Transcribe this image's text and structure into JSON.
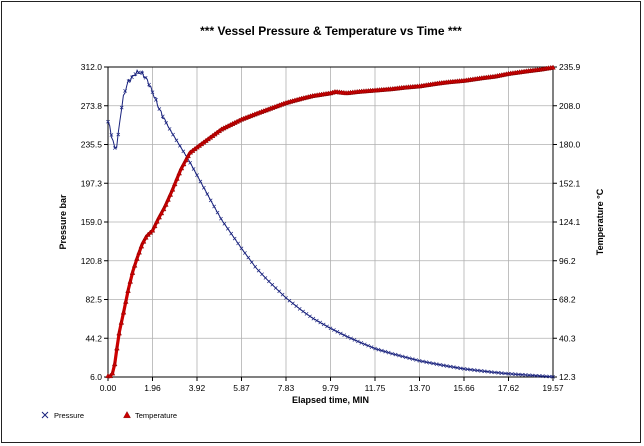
{
  "chart_data": {
    "type": "line",
    "title": "*** Vessel Pressure & Temperature vs  Time ***",
    "xlabel": "Elapsed time, MIN",
    "ylabel_left": "Pressure bar",
    "ylabel_right": "Temperature  °C",
    "xlim": [
      0.0,
      19.57
    ],
    "ylim_left": [
      6.0,
      312.0
    ],
    "ylim_right": [
      12.3,
      235.9
    ],
    "grid": true,
    "legend_position": "bottom-left",
    "x_ticks": [
      "0.00",
      "1.96",
      "3.92",
      "5.87",
      "7.83",
      "9.79",
      "11.75",
      "13.70",
      "15.66",
      "17.62",
      "19.57"
    ],
    "y_ticks_left": [
      "6.0",
      "44.2",
      "82.5",
      "120.8",
      "159.0",
      "197.3",
      "235.5",
      "273.8",
      "312.0"
    ],
    "y_ticks_right": [
      "12.3",
      "40.3",
      "68.2",
      "96.2",
      "124.1",
      "152.1",
      "180.0",
      "208.0",
      "235.9"
    ],
    "series": [
      {
        "name": "Pressure",
        "axis": "left",
        "color": "#1a237e",
        "marker": "x",
        "x": [
          0.0,
          0.05,
          0.1,
          0.2,
          0.3,
          0.35,
          0.45,
          0.55,
          0.7,
          0.9,
          1.1,
          1.3,
          1.5,
          1.7,
          1.9,
          2.1,
          2.3,
          2.6,
          3.0,
          3.5,
          3.92,
          4.5,
          5.0,
          5.87,
          6.5,
          7.0,
          7.83,
          8.5,
          9.0,
          9.79,
          10.5,
          11.0,
          11.75,
          12.5,
          13.0,
          13.7,
          14.5,
          15.0,
          15.66,
          16.5,
          17.0,
          17.62,
          18.5,
          19.0,
          19.57
        ],
        "values": [
          258,
          255,
          250,
          240,
          232,
          230,
          245,
          265,
          285,
          298,
          303,
          307,
          306,
          300,
          290,
          280,
          268,
          255,
          240,
          222,
          205,
          181,
          161,
          133,
          114,
          102,
          84,
          72,
          64,
          54,
          46,
          41,
          34,
          29,
          26,
          22,
          18.5,
          16.5,
          14,
          11.8,
          10.5,
          9.2,
          7.8,
          7.0,
          6.2
        ]
      },
      {
        "name": "Temperature",
        "axis": "right",
        "color": "#cc0000",
        "marker": "triangle",
        "x": [
          0.0,
          0.05,
          0.1,
          0.2,
          0.3,
          0.4,
          0.5,
          0.7,
          0.9,
          1.1,
          1.3,
          1.5,
          1.7,
          1.96,
          2.2,
          2.5,
          2.8,
          3.2,
          3.6,
          3.92,
          4.5,
          5.0,
          5.87,
          6.5,
          7.0,
          7.83,
          8.5,
          9.0,
          9.79,
          10.0,
          10.5,
          11.0,
          11.75,
          12.5,
          13.0,
          13.7,
          14.5,
          15.0,
          15.66,
          16.5,
          17.0,
          17.62,
          18.5,
          19.0,
          19.57
        ],
        "values": [
          13,
          12.5,
          13,
          15,
          22,
          34,
          45,
          60,
          76,
          89,
          99,
          108,
          114,
          118,
          126,
          135,
          146,
          162,
          174,
          178,
          185,
          191,
          198,
          202,
          205,
          210,
          213,
          215,
          217,
          218,
          217,
          218,
          219,
          220,
          221,
          222,
          224,
          225,
          226,
          228,
          229,
          231,
          233,
          234,
          235.5
        ]
      }
    ]
  }
}
